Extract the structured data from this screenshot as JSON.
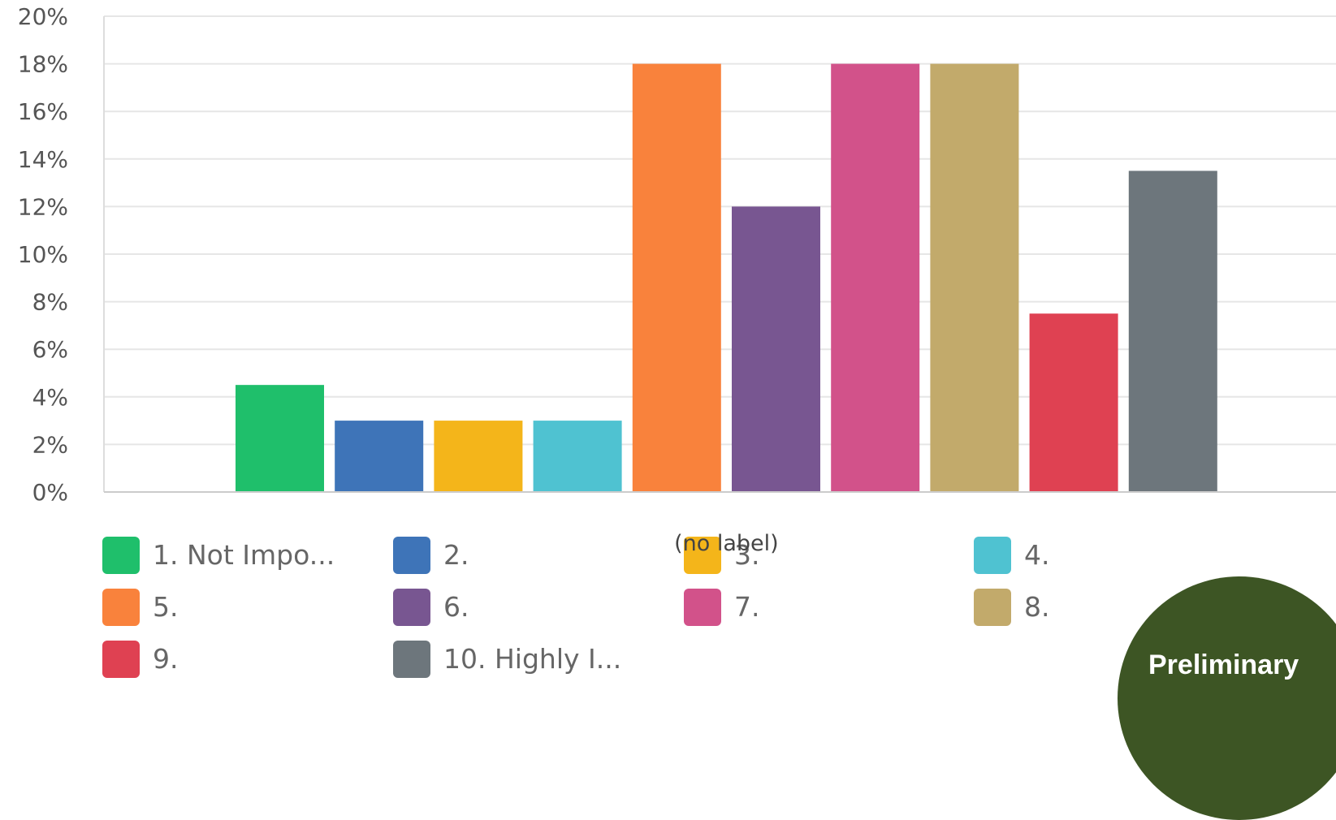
{
  "chart_data": {
    "type": "bar",
    "categories": [
      "(no label)"
    ],
    "series": [
      {
        "name": "1. Not Impo...",
        "values": [
          4.5
        ],
        "color": "#1fbf6b"
      },
      {
        "name": "2.",
        "values": [
          3.0
        ],
        "color": "#3e74b8"
      },
      {
        "name": "3.",
        "values": [
          3.0
        ],
        "color": "#f4b51a"
      },
      {
        "name": "4.",
        "values": [
          3.0
        ],
        "color": "#4fc2d1"
      },
      {
        "name": "5.",
        "values": [
          18.0
        ],
        "color": "#f9823c"
      },
      {
        "name": "6.",
        "values": [
          12.0
        ],
        "color": "#785691"
      },
      {
        "name": "7.",
        "values": [
          18.0
        ],
        "color": "#d2528a"
      },
      {
        "name": "8.",
        "values": [
          18.0
        ],
        "color": "#c2aa6b"
      },
      {
        "name": "9.",
        "values": [
          7.5
        ],
        "color": "#df4152"
      },
      {
        "name": "10. Highly I...",
        "values": [
          13.5
        ],
        "color": "#6d767c"
      }
    ],
    "ylim": [
      0,
      20
    ],
    "yticks": [
      "0%",
      "2%",
      "4%",
      "6%",
      "8%",
      "10%",
      "12%",
      "14%",
      "16%",
      "18%",
      "20%"
    ],
    "grid": true,
    "legend_position": "bottom"
  },
  "badge": {
    "text": "Preliminary"
  }
}
